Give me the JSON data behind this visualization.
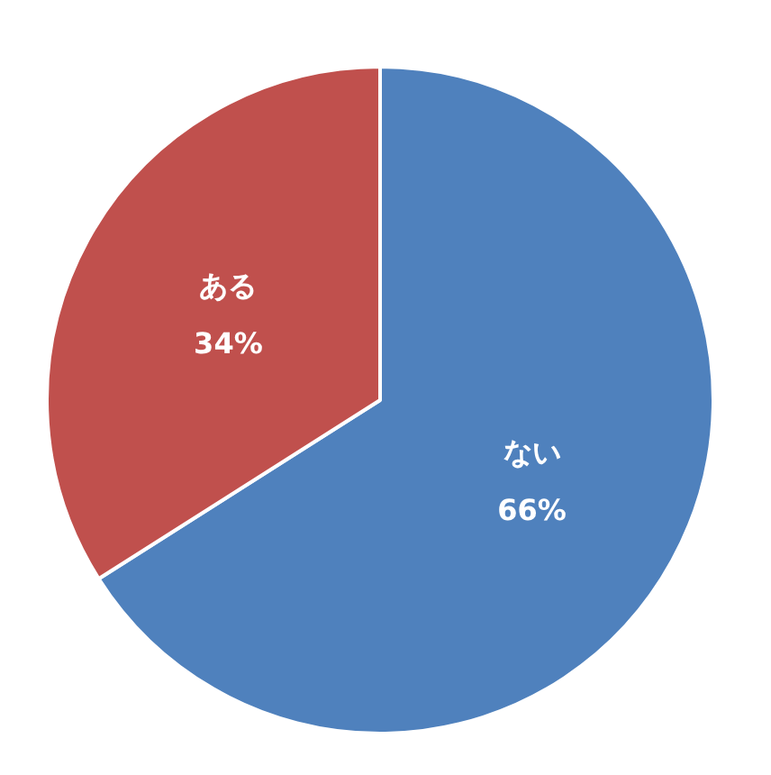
{
  "chart_data": {
    "type": "pie",
    "categories": [
      "ない",
      "ある"
    ],
    "values": [
      66,
      34
    ],
    "colors": [
      "#4f81bd",
      "#c0504d"
    ],
    "value_labels": [
      "66%",
      "34%"
    ],
    "legend": false
  }
}
